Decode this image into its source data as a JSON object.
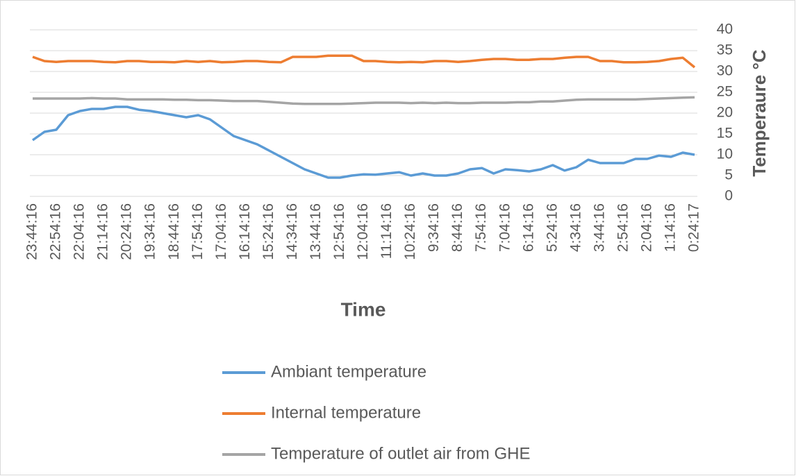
{
  "chart_data": {
    "type": "line",
    "x_label": "Time",
    "y_label": "Temperaure °C",
    "categories": [
      "23:44:16",
      null,
      "22:54:16",
      null,
      "22:04:16",
      null,
      "21:14:16",
      null,
      "20:24:16",
      null,
      "19:34:16",
      null,
      "18:44:16",
      null,
      "17:54:16",
      null,
      "17:04:16",
      null,
      "16:14:16",
      null,
      "15:24:16",
      null,
      "14:34:16",
      null,
      "13:44:16",
      null,
      "12:54:16",
      null,
      "12:04:16",
      null,
      "11:14:16",
      null,
      "10:24:16",
      null,
      "9:34:16",
      null,
      "8:44:16",
      null,
      "7:54:16",
      null,
      "7:04:16",
      null,
      "6:14:16",
      null,
      "5:24:16",
      null,
      "4:34:16",
      null,
      "3:44:16",
      null,
      "2:54:16",
      null,
      "2:04:16",
      null,
      "1:14:16",
      null,
      "0:24:17"
    ],
    "series": [
      {
        "name": "Ambiant temperature",
        "color": "#5b9bd5",
        "values": [
          13.5,
          15.5,
          16,
          19.5,
          20.5,
          21,
          21,
          21.5,
          21.5,
          20.8,
          20.5,
          20,
          19.5,
          19,
          19.5,
          18.5,
          16.5,
          14.5,
          13.5,
          12.5,
          11,
          9.5,
          8,
          6.5,
          5.5,
          4.5,
          4.5,
          5,
          5.3,
          5.2,
          5.5,
          5.8,
          5,
          5.5,
          5,
          5,
          5.5,
          6.5,
          6.8,
          5.5,
          6.5,
          6.3,
          6,
          6.5,
          7.5,
          6.2,
          7,
          8.8,
          8,
          8,
          8,
          9,
          9,
          9.8,
          9.5,
          10.5,
          10
        ]
      },
      {
        "name": "Internal temperature",
        "color": "#ed7d31",
        "values": [
          33.5,
          32.5,
          32.3,
          32.5,
          32.5,
          32.5,
          32.3,
          32.2,
          32.5,
          32.5,
          32.3,
          32.3,
          32.2,
          32.5,
          32.3,
          32.5,
          32.2,
          32.3,
          32.5,
          32.5,
          32.3,
          32.2,
          33.5,
          33.5,
          33.5,
          33.8,
          33.8,
          33.8,
          32.5,
          32.5,
          32.3,
          32.2,
          32.3,
          32.2,
          32.5,
          32.5,
          32.3,
          32.5,
          32.8,
          33,
          33,
          32.8,
          32.8,
          33,
          33,
          33.3,
          33.5,
          33.5,
          32.5,
          32.5,
          32.2,
          32.2,
          32.3,
          32.5,
          33,
          33.3,
          31
        ]
      },
      {
        "name": "Temperature of outlet air from GHE",
        "color": "#a5a5a5",
        "values": [
          23.5,
          23.5,
          23.5,
          23.5,
          23.5,
          23.6,
          23.5,
          23.5,
          23.3,
          23.3,
          23.3,
          23.3,
          23.2,
          23.2,
          23.1,
          23.1,
          23,
          22.9,
          22.9,
          22.9,
          22.7,
          22.5,
          22.3,
          22.2,
          22.2,
          22.2,
          22.2,
          22.3,
          22.4,
          22.5,
          22.5,
          22.5,
          22.4,
          22.5,
          22.4,
          22.5,
          22.4,
          22.4,
          22.5,
          22.5,
          22.5,
          22.6,
          22.6,
          22.8,
          22.8,
          23,
          23.2,
          23.3,
          23.3,
          23.3,
          23.3,
          23.3,
          23.4,
          23.5,
          23.6,
          23.7,
          23.8
        ]
      }
    ],
    "ylim": [
      0,
      40
    ],
    "yticks": [
      0,
      5,
      10,
      15,
      20,
      25,
      30,
      35,
      40
    ],
    "y_axis_side": "right",
    "grid": true,
    "legend": "bottom"
  }
}
